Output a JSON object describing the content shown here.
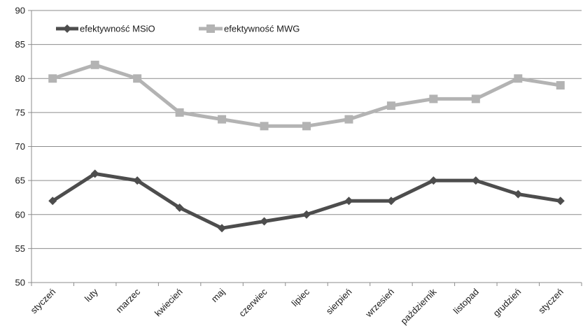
{
  "chart_data": {
    "type": "line",
    "title": "",
    "xlabel": "",
    "ylabel": "",
    "categories": [
      "styczeń",
      "luty",
      "marzec",
      "kwiecień",
      "maj",
      "czerwiec",
      "lipiec",
      "sierpień",
      "wrzesień",
      "październik",
      "listopad",
      "grudzień",
      "styczeń"
    ],
    "ylim": [
      50,
      90
    ],
    "yticks": [
      "50",
      "55",
      "60",
      "65",
      "70",
      "75",
      "80",
      "85",
      "90"
    ],
    "grid": "horizontal",
    "legend_position": "top-left",
    "series": [
      {
        "name": "efektywność MSiO",
        "values": [
          62,
          66,
          65,
          61,
          58,
          59,
          60,
          62,
          62,
          65,
          65,
          63,
          62
        ],
        "color": "#4d4d4d",
        "marker": "diamond"
      },
      {
        "name": "efektywność MWG",
        "values": [
          80,
          82,
          80,
          75,
          74,
          73,
          73,
          74,
          76,
          77,
          77,
          80,
          79
        ],
        "color": "#b3b3b3",
        "marker": "square"
      }
    ]
  }
}
